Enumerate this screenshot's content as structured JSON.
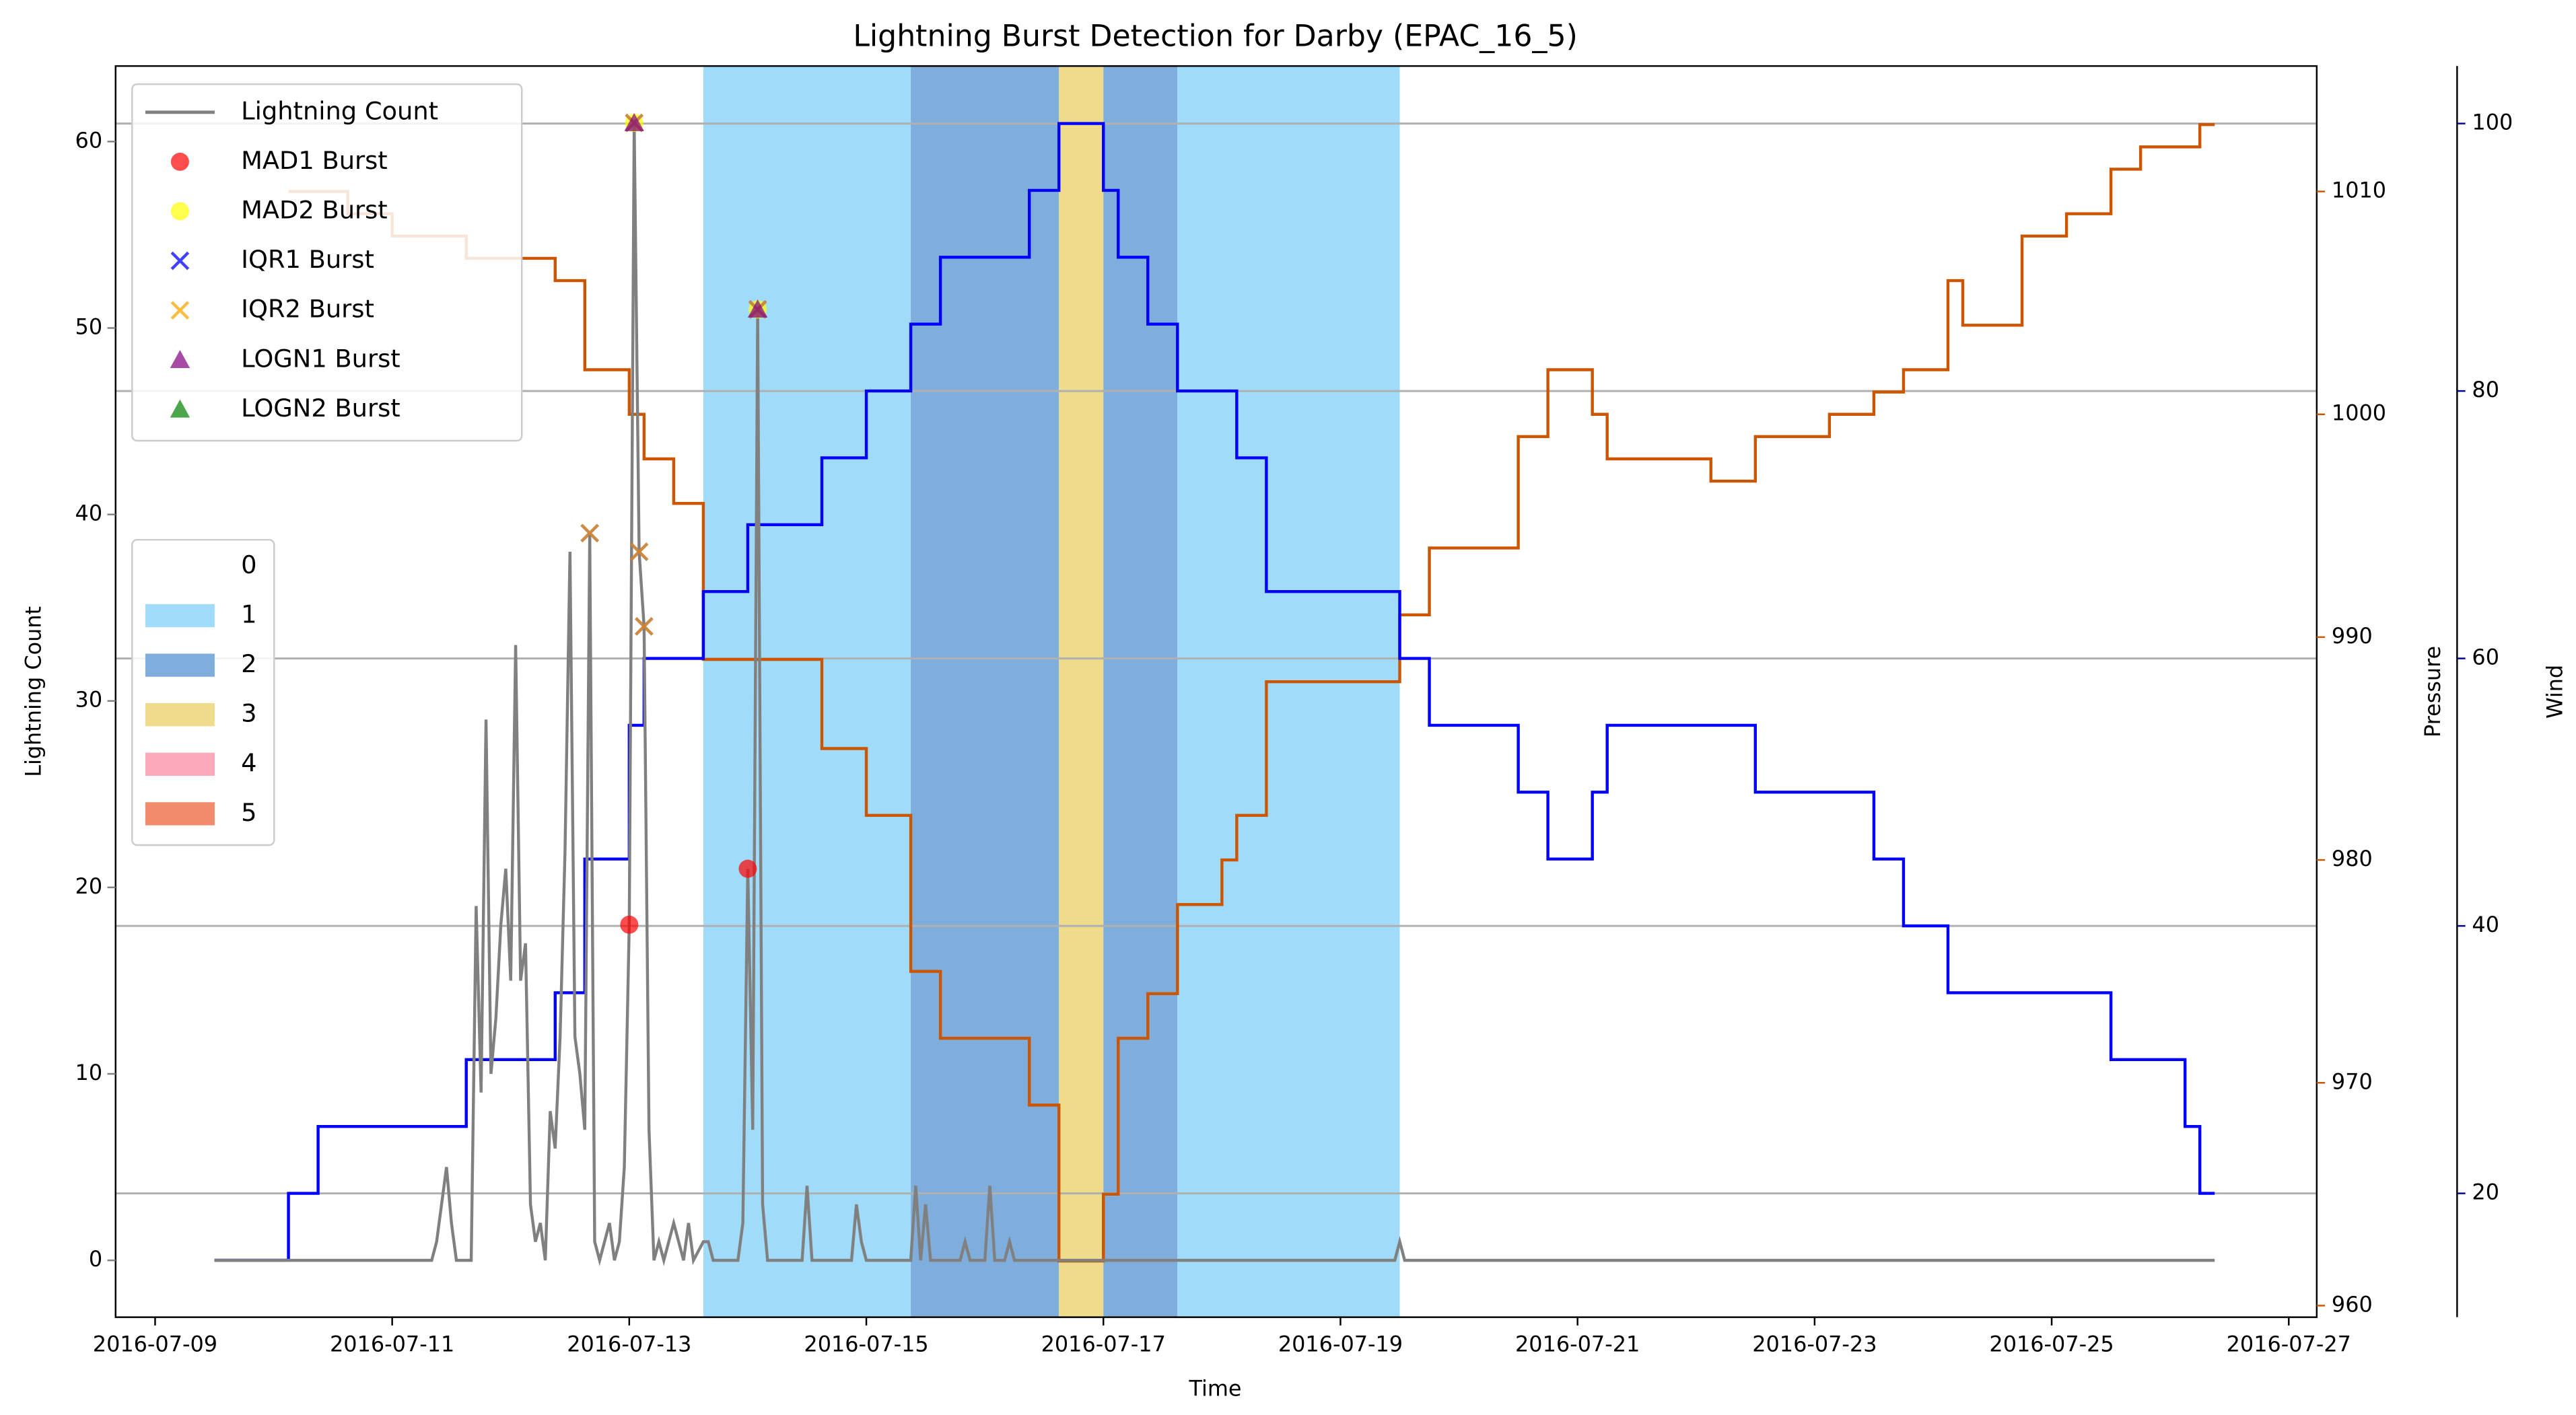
{
  "chart_data": {
    "type": "line",
    "title": "Lightning Burst Detection for Darby (EPAC_16_5)",
    "x_label": "Time",
    "y_label": "Lightning Count",
    "y2_label": "Pressure",
    "y3_label": "Wind",
    "xlim": [
      "2016-07-08 16:00",
      "2016-07-27 05:40"
    ],
    "xticks": [
      "2016-07-09",
      "2016-07-11",
      "2016-07-13",
      "2016-07-15",
      "2016-07-17",
      "2016-07-19",
      "2016-07-21",
      "2016-07-23",
      "2016-07-25",
      "2016-07-27"
    ],
    "ylim": [
      -3.05,
      64.05
    ],
    "yticks": [
      0,
      10,
      20,
      30,
      40,
      50,
      60
    ],
    "y_color": "#808080",
    "y2lim": [
      959.48,
      1015.63
    ],
    "y2ticks": [
      960,
      970,
      980,
      990,
      1000,
      1010
    ],
    "y2_color": "#cc5500",
    "y3lim": [
      10.74,
      104.3
    ],
    "y3ticks": [
      20,
      40,
      60,
      80,
      100
    ],
    "y3_color": "#00008b",
    "grid": true,
    "series": [
      {
        "name": "Lightning Count",
        "color": "#808080",
        "x": [
          "2016-07-09 12:00",
          "2016-07-11 08:00",
          "2016-07-11 09:00",
          "2016-07-11 10:00",
          "2016-07-11 11:00",
          "2016-07-11 12:00",
          "2016-07-11 13:00",
          "2016-07-11 16:00",
          "2016-07-11 17:00",
          "2016-07-11 18:00",
          "2016-07-11 19:00",
          "2016-07-11 20:00",
          "2016-07-11 21:00",
          "2016-07-11 22:00",
          "2016-07-11 23:00",
          "2016-07-12 00:00",
          "2016-07-12 01:00",
          "2016-07-12 02:00",
          "2016-07-12 03:00",
          "2016-07-12 04:00",
          "2016-07-12 05:00",
          "2016-07-12 06:00",
          "2016-07-12 07:00",
          "2016-07-12 08:00",
          "2016-07-12 09:00",
          "2016-07-12 10:00",
          "2016-07-12 11:00",
          "2016-07-12 12:00",
          "2016-07-12 13:00",
          "2016-07-12 14:00",
          "2016-07-12 15:00",
          "2016-07-12 16:00",
          "2016-07-12 17:00",
          "2016-07-12 18:00",
          "2016-07-12 19:00",
          "2016-07-12 20:00",
          "2016-07-12 21:00",
          "2016-07-12 22:00",
          "2016-07-12 23:00",
          "2016-07-13 00:00",
          "2016-07-13 01:00",
          "2016-07-13 02:00",
          "2016-07-13 03:00",
          "2016-07-13 04:00",
          "2016-07-13 05:00",
          "2016-07-13 06:00",
          "2016-07-13 07:00",
          "2016-07-13 09:00",
          "2016-07-13 10:00",
          "2016-07-13 11:00",
          "2016-07-13 12:00",
          "2016-07-13 13:00",
          "2016-07-13 15:00",
          "2016-07-13 16:00",
          "2016-07-13 17:00",
          "2016-07-13 22:00",
          "2016-07-13 23:00",
          "2016-07-14 00:00",
          "2016-07-14 01:00",
          "2016-07-14 02:00",
          "2016-07-14 03:00",
          "2016-07-14 04:00",
          "2016-07-14 11:00",
          "2016-07-14 12:00",
          "2016-07-14 13:00",
          "2016-07-14 21:00",
          "2016-07-14 22:00",
          "2016-07-14 23:00",
          "2016-07-15 00:00",
          "2016-07-15 09:00",
          "2016-07-15 10:00",
          "2016-07-15 11:00",
          "2016-07-15 12:00",
          "2016-07-15 13:00",
          "2016-07-15 19:00",
          "2016-07-15 20:00",
          "2016-07-15 21:00",
          "2016-07-16 00:00",
          "2016-07-16 01:00",
          "2016-07-16 02:00",
          "2016-07-16 04:00",
          "2016-07-16 05:00",
          "2016-07-16 06:00",
          "2016-07-19 11:00",
          "2016-07-19 12:00",
          "2016-07-19 13:00",
          "2016-07-26 09:00"
        ],
        "values": [
          0,
          0,
          1,
          3,
          5,
          2,
          0,
          0,
          19,
          9,
          29,
          10,
          13,
          18,
          21,
          15,
          33,
          15,
          17,
          3,
          1,
          2,
          0,
          8,
          6,
          12,
          22,
          38,
          12,
          10,
          7,
          39,
          1,
          0,
          1,
          2,
          0,
          1,
          5,
          18,
          61,
          38,
          34,
          7,
          0,
          1,
          0,
          2,
          1,
          0,
          2,
          0,
          1,
          1,
          0,
          0,
          2,
          21,
          7,
          51,
          3,
          0,
          0,
          4,
          0,
          0,
          3,
          1,
          0,
          0,
          4,
          0,
          3,
          0,
          0,
          1,
          0,
          0,
          4,
          0,
          0,
          1,
          0,
          0,
          1,
          0,
          0
        ]
      },
      {
        "name": "MAD1 Burst",
        "color": "#ff0000",
        "marker": "o",
        "x": [
          "2016-07-13 00:00",
          "2016-07-14 00:00"
        ],
        "values": [
          18,
          21
        ]
      },
      {
        "name": "MAD2 Burst",
        "color": "#ffff00",
        "marker": "o",
        "x": [
          "2016-07-13 01:00",
          "2016-07-14 02:00"
        ],
        "values": [
          61,
          51
        ]
      },
      {
        "name": "IQR1 Burst",
        "color": "#0000ff",
        "marker": "x",
        "x": [
          "2016-07-12 16:00",
          "2016-07-13 01:00",
          "2016-07-13 02:00",
          "2016-07-13 03:00",
          "2016-07-14 02:00"
        ],
        "values": [
          39,
          61,
          38,
          34,
          51
        ]
      },
      {
        "name": "IQR2 Burst",
        "color": "#ffa500",
        "marker": "x",
        "x": [
          "2016-07-12 16:00",
          "2016-07-13 01:00",
          "2016-07-13 02:00",
          "2016-07-13 03:00",
          "2016-07-14 02:00"
        ],
        "values": [
          39,
          61,
          38,
          34,
          51
        ]
      },
      {
        "name": "LOGN1 Burst",
        "color": "#800080",
        "marker": "^",
        "x": [
          "2016-07-13 01:00",
          "2016-07-14 02:00"
        ],
        "values": [
          61,
          51
        ]
      },
      {
        "name": "LOGN2 Burst",
        "color": "#008000",
        "marker": "^",
        "x": [],
        "values": []
      }
    ],
    "pressure": {
      "color": "#cc5500",
      "axis": "y2",
      "x": [
        "2016-07-10 03:00",
        "2016-07-10 15:00",
        "2016-07-11 00:00",
        "2016-07-11 15:00",
        "2016-07-12 09:00",
        "2016-07-12 15:00",
        "2016-07-13 00:00",
        "2016-07-13 03:00",
        "2016-07-13 09:00",
        "2016-07-13 15:00",
        "2016-07-14 15:00",
        "2016-07-15 00:00",
        "2016-07-15 09:00",
        "2016-07-15 15:00",
        "2016-07-16 09:00",
        "2016-07-16 15:00",
        "2016-07-17 00:00",
        "2016-07-17 03:00",
        "2016-07-17 09:00",
        "2016-07-17 15:00",
        "2016-07-18 00:00",
        "2016-07-18 03:00",
        "2016-07-18 09:00",
        "2016-07-19 12:00",
        "2016-07-19 18:00",
        "2016-07-20 12:00",
        "2016-07-20 18:00",
        "2016-07-21 03:00",
        "2016-07-21 06:00",
        "2016-07-22 03:00",
        "2016-07-22 12:00",
        "2016-07-23 03:00",
        "2016-07-23 12:00",
        "2016-07-23 18:00",
        "2016-07-24 03:00",
        "2016-07-24 06:00",
        "2016-07-24 18:00",
        "2016-07-25 03:00",
        "2016-07-25 12:00",
        "2016-07-25 18:00",
        "2016-07-26 06:00",
        "2016-07-26 09:00"
      ],
      "values": [
        1010,
        1009,
        1008,
        1007,
        1006,
        1002,
        1000,
        998,
        996,
        989,
        985,
        982,
        975,
        972,
        969,
        962,
        965,
        972,
        974,
        978,
        980,
        982,
        988,
        991,
        994,
        999,
        1002,
        1000,
        998,
        997,
        999,
        1000,
        1001,
        1002,
        1006,
        1004,
        1008,
        1009,
        1011,
        1012,
        1013,
        1013
      ]
    },
    "wind": {
      "color": "#0000ff",
      "axis": "y3",
      "x": [
        "2016-07-09 12:00",
        "2016-07-10 03:00",
        "2016-07-10 09:00",
        "2016-07-11 15:00",
        "2016-07-12 09:00",
        "2016-07-12 15:00",
        "2016-07-13 00:00",
        "2016-07-13 03:00",
        "2016-07-13 15:00",
        "2016-07-14 00:00",
        "2016-07-14 15:00",
        "2016-07-15 00:00",
        "2016-07-15 09:00",
        "2016-07-15 15:00",
        "2016-07-16 09:00",
        "2016-07-16 15:00",
        "2016-07-17 00:00",
        "2016-07-17 03:00",
        "2016-07-17 09:00",
        "2016-07-17 15:00",
        "2016-07-18 03:00",
        "2016-07-18 09:00",
        "2016-07-19 12:00",
        "2016-07-19 18:00",
        "2016-07-20 12:00",
        "2016-07-20 18:00",
        "2016-07-21 03:00",
        "2016-07-21 06:00",
        "2016-07-22 12:00",
        "2016-07-23 12:00",
        "2016-07-23 18:00",
        "2016-07-24 03:00",
        "2016-07-25 12:00",
        "2016-07-26 03:00",
        "2016-07-26 06:00",
        "2016-07-26 09:00"
      ],
      "values": [
        15,
        20,
        25,
        30,
        35,
        45,
        55,
        60,
        65,
        70,
        75,
        80,
        85,
        90,
        95,
        100,
        95,
        90,
        85,
        80,
        75,
        65,
        60,
        55,
        50,
        45,
        50,
        55,
        50,
        45,
        40,
        35,
        30,
        25,
        20,
        20
      ]
    },
    "bands": {
      "legend": [
        {
          "label": "0",
          "color": "none"
        },
        {
          "label": "1",
          "color": "#a0dcfa"
        },
        {
          "label": "2",
          "color": "#80aedc"
        },
        {
          "label": "3",
          "color": "#eedc8c"
        },
        {
          "label": "4",
          "color": "#fcaab9"
        },
        {
          "label": "5",
          "color": "#f08c6c"
        }
      ],
      "spans": [
        {
          "start": "2016-07-13 15:00",
          "end": "2016-07-15 09:00",
          "category": "1"
        },
        {
          "start": "2016-07-15 09:00",
          "end": "2016-07-16 15:00",
          "category": "2"
        },
        {
          "start": "2016-07-16 15:00",
          "end": "2016-07-17 00:00",
          "category": "3"
        },
        {
          "start": "2016-07-17 00:00",
          "end": "2016-07-17 15:00",
          "category": "2"
        },
        {
          "start": "2016-07-17 15:00",
          "end": "2016-07-19 12:00",
          "category": "1"
        }
      ]
    }
  }
}
